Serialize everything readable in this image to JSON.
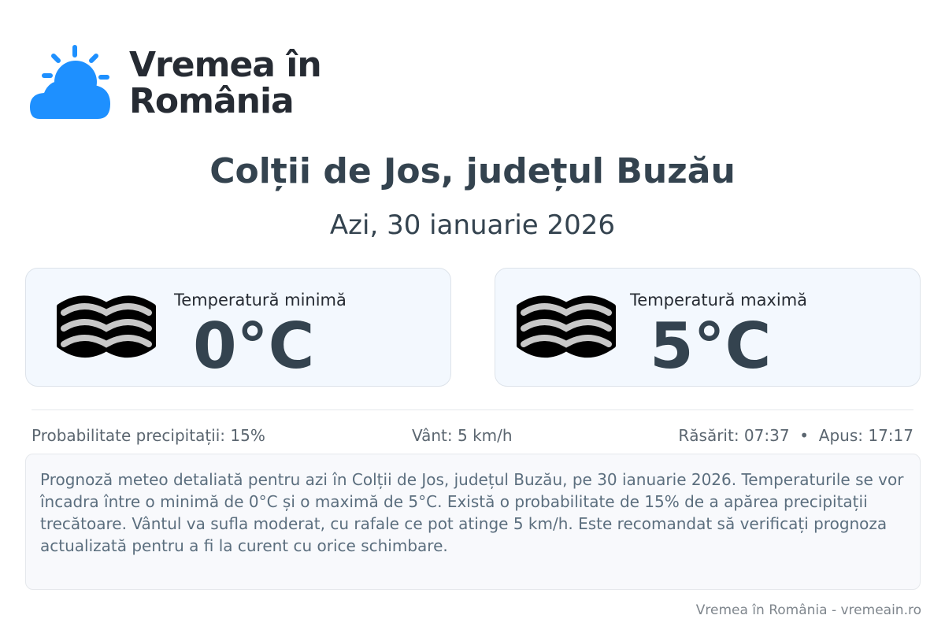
{
  "logo": {
    "text_line1": "Vremea în",
    "text_line2": "România",
    "icon": "sun-behind-cloud-icon",
    "color": "#1e90ff"
  },
  "header": {
    "title": "Colții de Jos, județul Buzău",
    "date": "Azi, 30 ianuarie 2026"
  },
  "cards": [
    {
      "label": "Temperatură minimă",
      "value": "0°C",
      "icon": "fog-icon"
    },
    {
      "label": "Temperatură maximă",
      "value": "5°C",
      "icon": "fog-icon"
    }
  ],
  "stats": {
    "precip": "Probabilitate precipitații: 15%",
    "wind": "Vânt: 5 km/h",
    "sun": "Răsărit: 07:37  •  Apus: 17:17"
  },
  "description": "Prognoză meteo detaliată pentru azi în Colții de Jos, județul Buzău, pe 30 ianuarie 2026. Temperaturile se vor încadra între o minimă de 0°C și o maximă de 5°C. Există o probabilitate de 15% de a apărea precipitații trecătoare. Vântul va sufla moderat, cu rafale ce pot atinge 5 km/h. Este recomandat să verificați prognoza actualizată pentru a fi la curent cu orice schimbare.",
  "footer": "Vremea în România - vremeain.ro"
}
